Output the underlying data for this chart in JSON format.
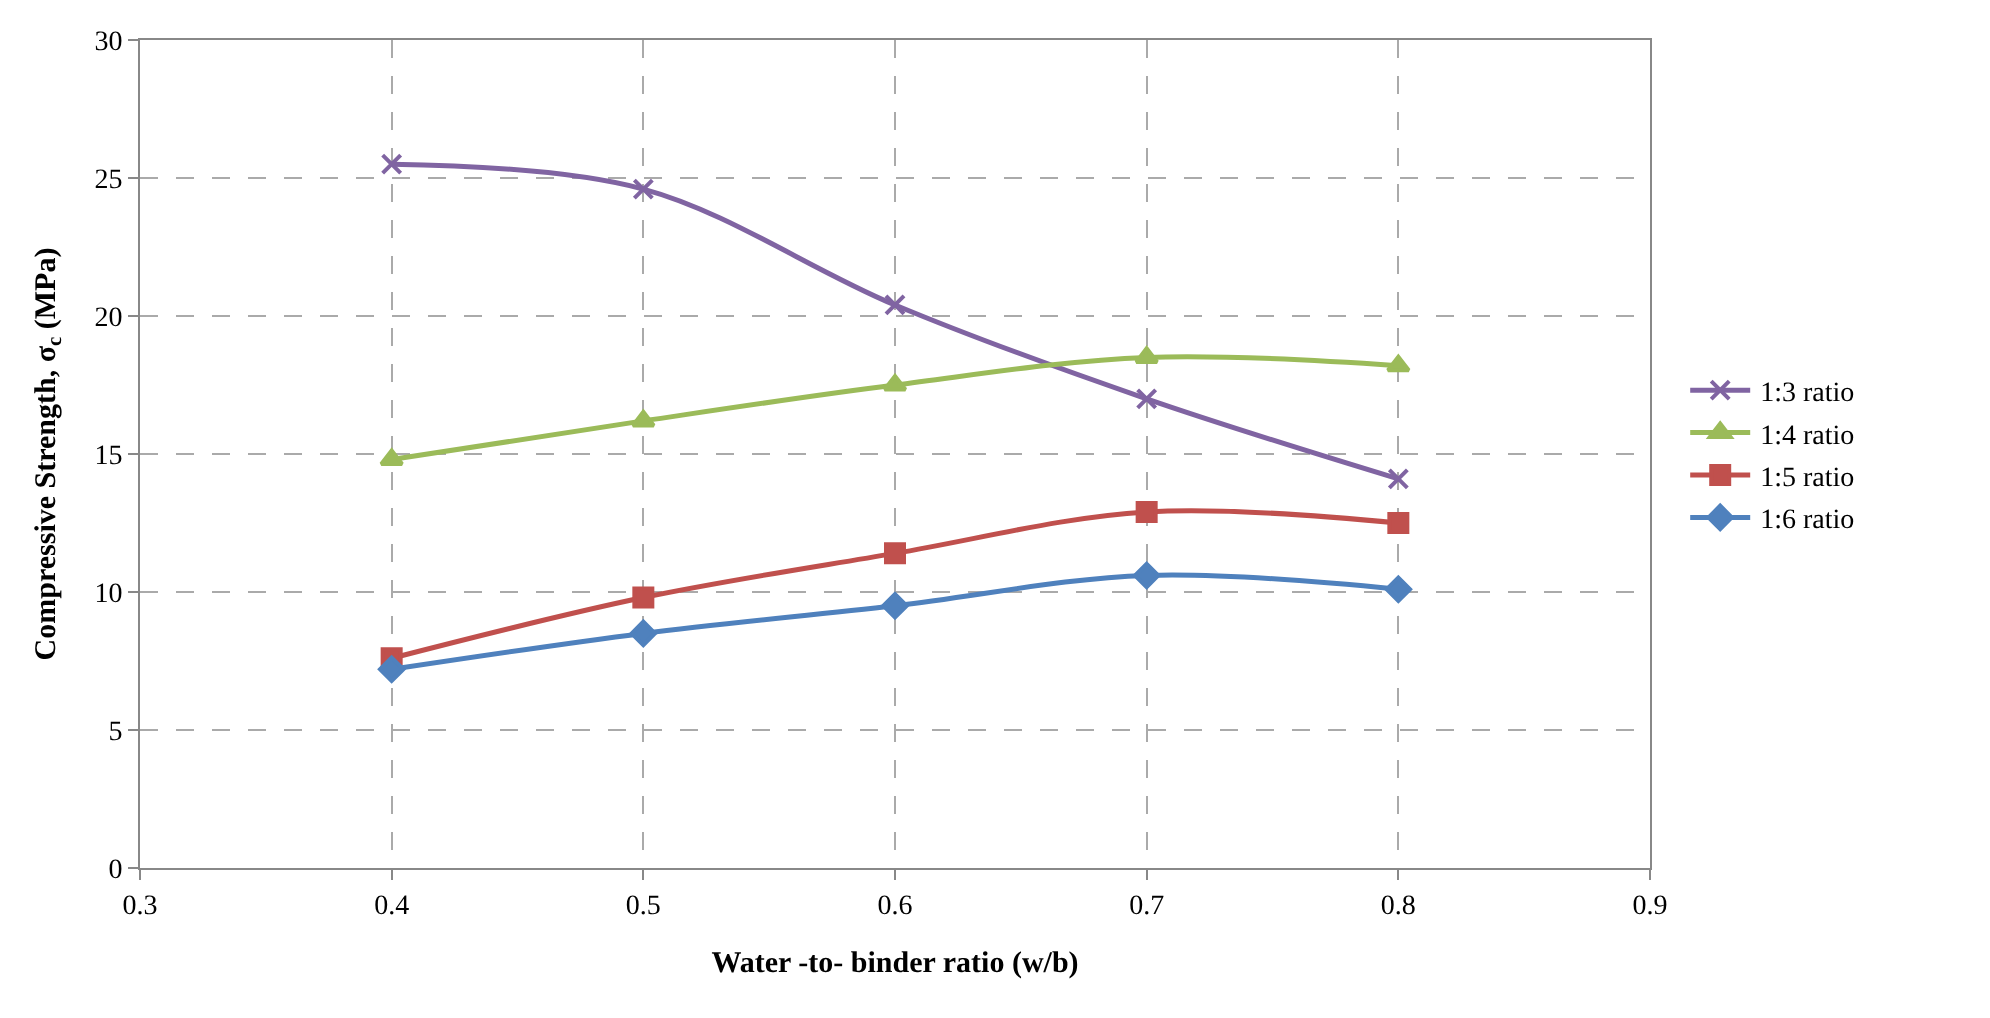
{
  "chart_data": {
    "type": "line",
    "xlabel": "Water -to- binder ratio (w/b)",
    "ylabel": "Compressive Strength, σ$_{c}$ (MPa)",
    "x": [
      0.4,
      0.5,
      0.6,
      0.7,
      0.8
    ],
    "xlim": [
      0.3,
      0.9
    ],
    "xticks": [
      0.3,
      0.4,
      0.5,
      0.6,
      0.7,
      0.8,
      0.9
    ],
    "ylim": [
      0,
      30
    ],
    "yticks": [
      0,
      5,
      10,
      15,
      20,
      25,
      30
    ],
    "grid": true,
    "legend": "right",
    "line_style": "solid",
    "series": [
      {
        "name": "1:3 ratio",
        "color": "#8064a2",
        "marker": "cross",
        "values": [
          25.5,
          24.6,
          20.4,
          17.0,
          14.1
        ]
      },
      {
        "name": "1:4 ratio",
        "color": "#9bbb59",
        "marker": "triangle",
        "values": [
          14.8,
          16.2,
          17.5,
          18.5,
          18.2
        ]
      },
      {
        "name": "1:5 ratio",
        "color": "#c0504d",
        "marker": "square",
        "values": [
          7.6,
          9.8,
          11.4,
          12.9,
          12.5
        ]
      },
      {
        "name": "1:6 ratio",
        "color": "#4f81bd",
        "marker": "diamond",
        "values": [
          7.2,
          8.5,
          9.5,
          10.6,
          10.1
        ]
      }
    ]
  }
}
